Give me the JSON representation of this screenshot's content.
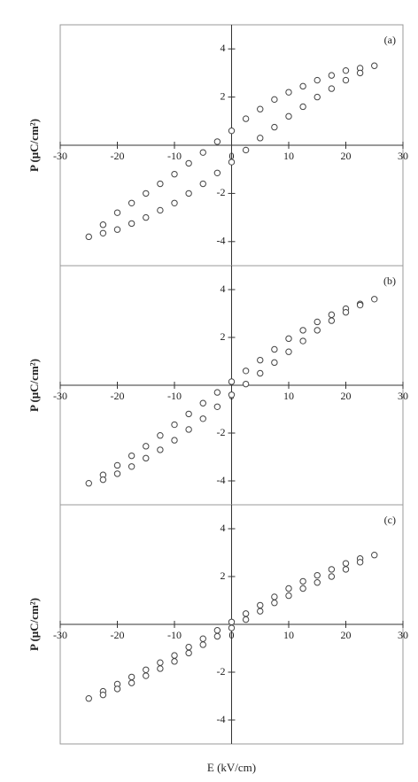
{
  "chart_data": [
    {
      "type": "scatter",
      "annotation": "(a)",
      "ylabel": "P (μC/cm²)",
      "x": [
        25,
        22.5,
        20,
        17.5,
        15,
        12.5,
        10,
        7.5,
        5,
        2.5,
        0,
        -2.5,
        -5,
        -7.5,
        -10,
        -12.5,
        -15,
        -17.5,
        -20,
        -22.5,
        -25,
        -22.5,
        -20,
        -17.5,
        -15,
        -12.5,
        -10,
        -7.5,
        -5,
        -2.5,
        0,
        2.5,
        5,
        7.5,
        10,
        12.5,
        15,
        17.5,
        20,
        22.5
      ],
      "y": [
        3.3,
        3.2,
        3.1,
        2.9,
        2.7,
        2.45,
        2.2,
        1.9,
        1.5,
        1.1,
        0.6,
        0.15,
        -0.3,
        -0.75,
        -1.2,
        -1.6,
        -2.0,
        -2.4,
        -2.8,
        -3.3,
        -3.8,
        -3.65,
        -3.5,
        -3.25,
        -3.0,
        -2.7,
        -2.4,
        -2.0,
        -1.6,
        -1.15,
        -0.7,
        -0.2,
        0.3,
        0.75,
        1.2,
        1.6,
        2.0,
        2.35,
        2.7,
        3.0
      ],
      "xlim": [
        -30,
        30
      ],
      "ylim": [
        -5,
        5
      ],
      "xticks": [
        -30,
        -20,
        -10,
        0,
        10,
        20,
        30
      ],
      "yticks": [
        -4,
        -2,
        2,
        4
      ],
      "color": "#444444"
    },
    {
      "type": "scatter",
      "annotation": "(b)",
      "ylabel": "P (μC/cm²)",
      "x": [
        25,
        22.5,
        20,
        17.5,
        15,
        12.5,
        10,
        7.5,
        5,
        2.5,
        0,
        -2.5,
        -5,
        -7.5,
        -10,
        -12.5,
        -15,
        -17.5,
        -20,
        -22.5,
        -25,
        -22.5,
        -20,
        -17.5,
        -15,
        -12.5,
        -10,
        -7.5,
        -5,
        -2.5,
        0,
        2.5,
        5,
        7.5,
        10,
        12.5,
        15,
        17.5,
        20,
        22.5
      ],
      "y": [
        3.6,
        3.4,
        3.2,
        2.95,
        2.65,
        2.3,
        1.95,
        1.5,
        1.05,
        0.6,
        0.15,
        -0.3,
        -0.75,
        -1.2,
        -1.65,
        -2.1,
        -2.55,
        -2.95,
        -3.35,
        -3.75,
        -4.1,
        -3.95,
        -3.7,
        -3.4,
        -3.05,
        -2.7,
        -2.3,
        -1.85,
        -1.4,
        -0.9,
        -0.4,
        0.05,
        0.5,
        0.95,
        1.4,
        1.85,
        2.3,
        2.7,
        3.05,
        3.35
      ],
      "xlim": [
        -30,
        30
      ],
      "ylim": [
        -5,
        5
      ],
      "xticks": [
        -30,
        -20,
        -10,
        0,
        10,
        20,
        30
      ],
      "yticks": [
        -4,
        -2,
        2,
        4
      ],
      "color": "#444444"
    },
    {
      "type": "scatter",
      "annotation": "(c)",
      "ylabel": "P (μC/cm²)",
      "xlabel": "E (kV/cm)",
      "x": [
        25,
        22.5,
        20,
        17.5,
        15,
        12.5,
        10,
        7.5,
        5,
        2.5,
        0,
        -2.5,
        -5,
        -7.5,
        -10,
        -12.5,
        -15,
        -17.5,
        -20,
        -22.5,
        -25,
        -22.5,
        -20,
        -17.5,
        -15,
        -12.5,
        -10,
        -7.5,
        -5,
        -2.5,
        0,
        2.5,
        5,
        7.5,
        10,
        12.5,
        15,
        17.5,
        20,
        22.5
      ],
      "y": [
        2.9,
        2.75,
        2.55,
        2.3,
        2.05,
        1.8,
        1.5,
        1.15,
        0.8,
        0.45,
        0.1,
        -0.25,
        -0.6,
        -0.95,
        -1.3,
        -1.6,
        -1.9,
        -2.2,
        -2.5,
        -2.8,
        -3.1,
        -2.95,
        -2.7,
        -2.45,
        -2.15,
        -1.85,
        -1.55,
        -1.2,
        -0.85,
        -0.5,
        -0.15,
        0.2,
        0.55,
        0.9,
        1.2,
        1.5,
        1.75,
        2.0,
        2.3,
        2.6
      ],
      "xlim": [
        -30,
        30
      ],
      "ylim": [
        -5,
        5
      ],
      "xticks": [
        -30,
        -20,
        -10,
        0,
        10,
        20,
        30
      ],
      "yticks": [
        -4,
        -2,
        2,
        4
      ],
      "color": "#444444"
    }
  ]
}
